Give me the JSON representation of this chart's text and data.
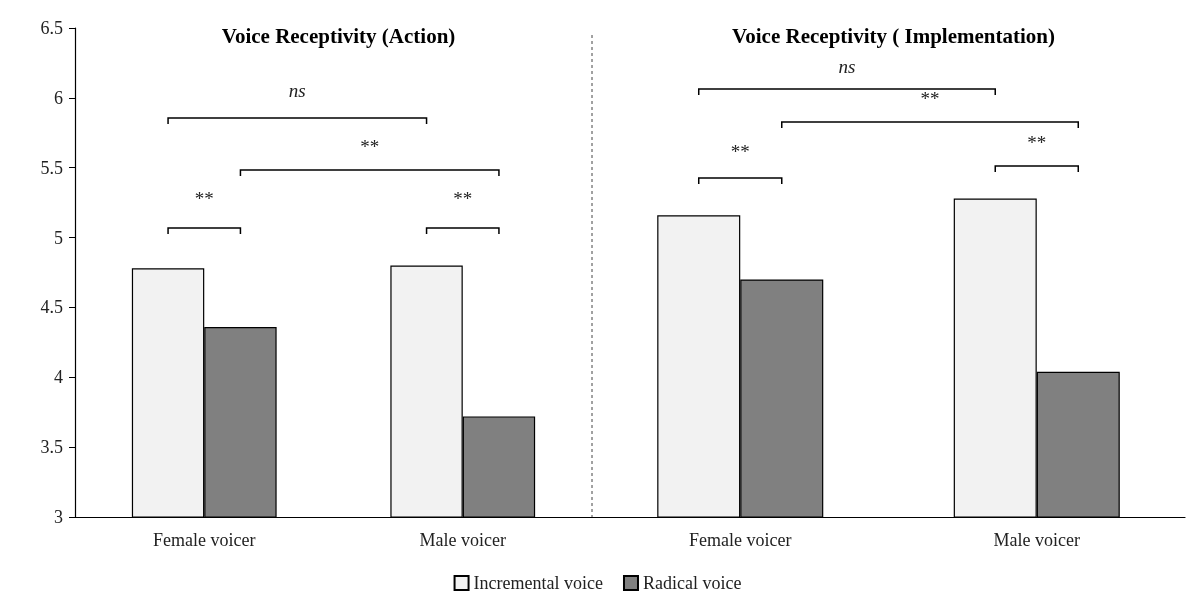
{
  "chart_data": [
    {
      "type": "bar",
      "title": "Voice Receptivity (Action)",
      "categories": [
        "Female voicer",
        "Male voicer"
      ],
      "series": [
        {
          "name": "Incremental voice",
          "color": "#f2f2f2",
          "values": [
            4.78,
            4.8
          ]
        },
        {
          "name": "Radical voice",
          "color": "#808080",
          "values": [
            4.36,
            3.72
          ]
        }
      ],
      "ylim": [
        3,
        6.5
      ],
      "yticks": [
        3,
        3.5,
        4,
        4.5,
        5,
        5.5,
        6,
        6.5
      ],
      "grid": false,
      "legend": "bottom",
      "annotations": [
        "ns",
        "**",
        "**",
        "**"
      ]
    },
    {
      "type": "bar",
      "title": "Voice Receptivity ( Implementation)",
      "categories": [
        "Female voicer",
        "Male voicer"
      ],
      "series": [
        {
          "color": "#f2f2f2",
          "values": [
            5.16,
            5.28
          ]
        },
        {
          "color": "#808080",
          "values": [
            4.7,
            4.04
          ]
        }
      ],
      "ylim": [
        3,
        6.5
      ],
      "yticks": [
        3,
        3.5,
        4,
        4.5,
        5,
        5.5,
        6,
        6.5
      ],
      "grid": false,
      "legend": false,
      "tick_labels": "x",
      "annotations": [
        "ns",
        "**",
        "**",
        "**"
      ]
    }
  ]
}
